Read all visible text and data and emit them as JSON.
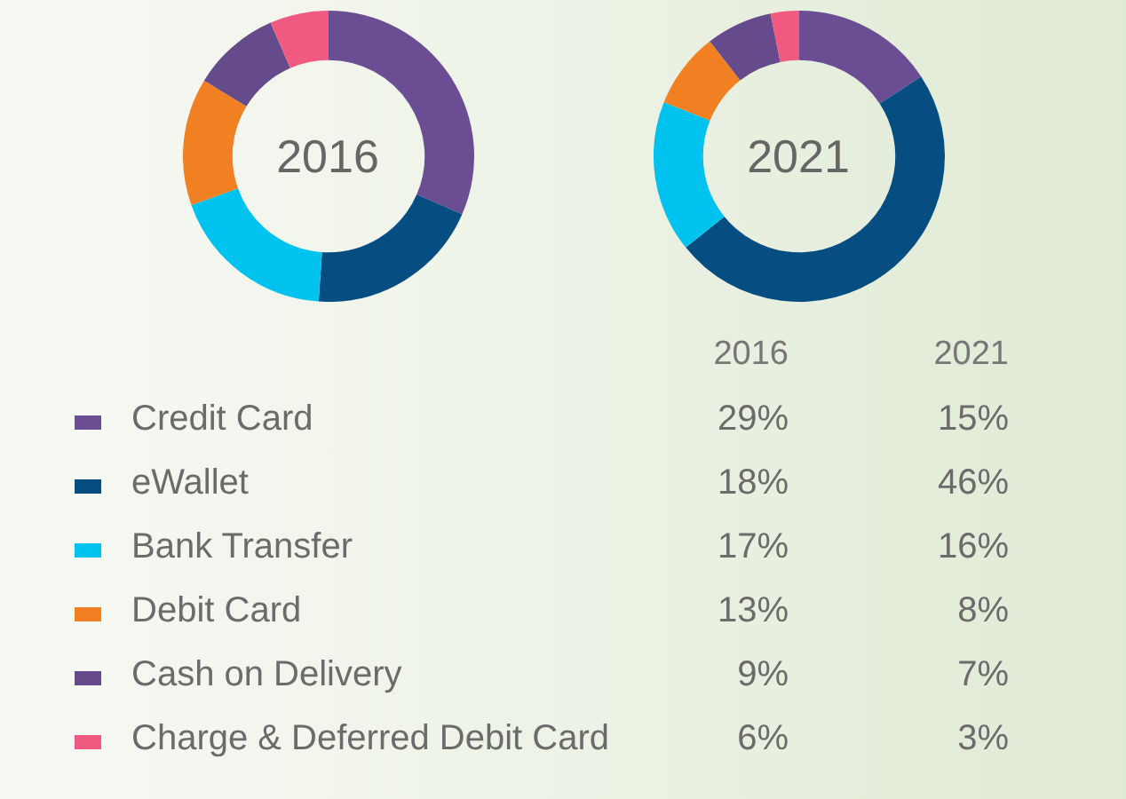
{
  "chart_data": {
    "type": "donut",
    "categories": [
      "Credit Card",
      "eWallet",
      "Bank Transfer",
      "Debit Card",
      "Cash on Delivery",
      "Charge & Deferred Debit Card"
    ],
    "colors": [
      "#6a4d92",
      "#064e82",
      "#00c2ee",
      "#f08022",
      "#654b8c",
      "#f05a80"
    ],
    "legend": "bottom",
    "series": [
      {
        "name": "2016",
        "values": [
          29,
          18,
          17,
          13,
          9,
          6
        ],
        "value_labels": [
          "29%",
          "18%",
          "17%",
          "13%",
          "9%",
          "6%"
        ]
      },
      {
        "name": "2021",
        "values": [
          15,
          46,
          16,
          8,
          7,
          3
        ],
        "value_labels": [
          "15%",
          "46%",
          "16%",
          "8%",
          "7%",
          "3%"
        ]
      }
    ]
  }
}
